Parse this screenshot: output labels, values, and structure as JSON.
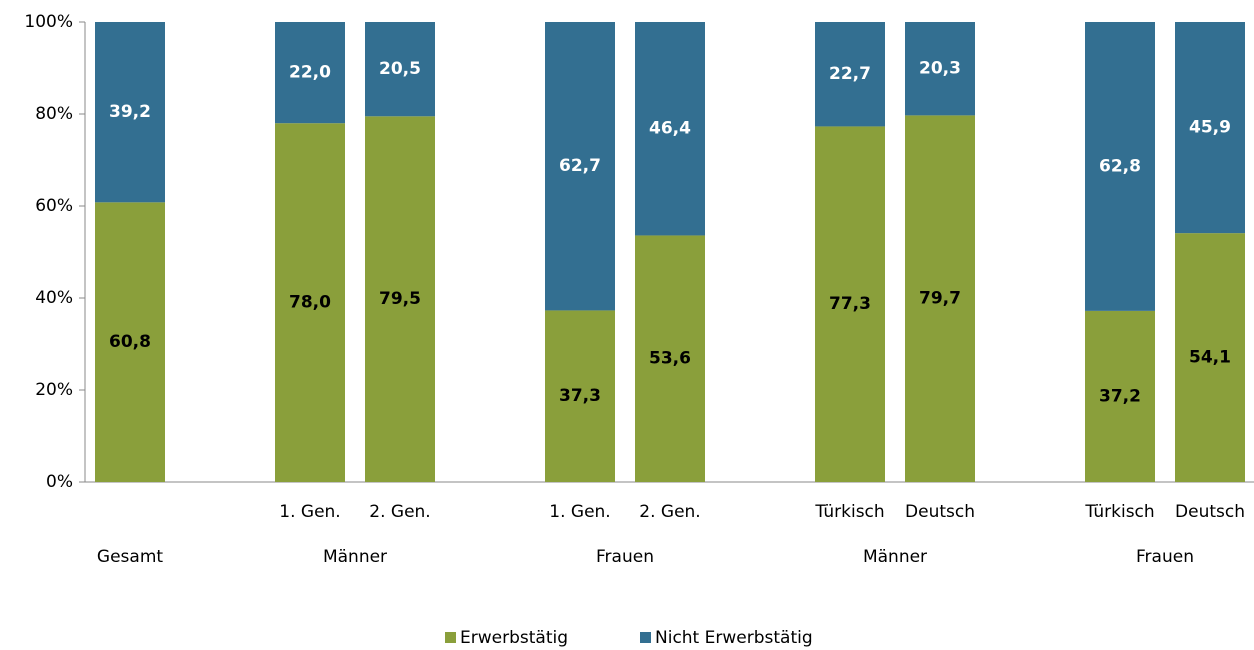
{
  "chart_data": {
    "type": "stacked_bar",
    "categories": [
      null,
      null,
      "1. Gen.",
      "2. Gen.",
      null,
      "1. Gen.",
      "2. Gen.",
      null,
      "Türkisch",
      "Deutsch",
      null,
      "Türkisch",
      "Deutsch"
    ],
    "group_labels": [
      "Gesamt",
      "Männer",
      "Frauen",
      "Männer",
      "Frauen"
    ],
    "series": [
      {
        "name": "Erwerbstätig",
        "color": "#8a9f3b",
        "values": [
          60.8,
          null,
          78.0,
          79.5,
          null,
          37.3,
          53.6,
          null,
          77.3,
          79.7,
          null,
          37.2,
          54.1
        ],
        "value_labels": [
          "60,8",
          null,
          "78,0",
          "79,5",
          null,
          "37,3",
          "53,6",
          null,
          "77,3",
          "79,7",
          null,
          "37,2",
          "54,1"
        ]
      },
      {
        "name": "Nicht Erwerbstätig",
        "color": "#336f91",
        "values": [
          39.2,
          null,
          22.0,
          20.5,
          null,
          62.7,
          46.4,
          null,
          22.7,
          20.3,
          null,
          62.8,
          45.9
        ],
        "value_labels": [
          "39,2",
          null,
          "22,0",
          "20,5",
          null,
          "62,7",
          "46,4",
          null,
          "22,7",
          "20,3",
          null,
          "62,8",
          "45,9"
        ]
      }
    ],
    "ylim": [
      0,
      100
    ],
    "yticks": [
      {
        "value": 0,
        "label": "0%"
      },
      {
        "value": 20,
        "label": "20%"
      },
      {
        "value": 40,
        "label": "40%"
      },
      {
        "value": 60,
        "label": "60%"
      },
      {
        "value": 80,
        "label": "80%"
      },
      {
        "value": 100,
        "label": "100%"
      }
    ],
    "grid": false,
    "legend": "bottom"
  }
}
